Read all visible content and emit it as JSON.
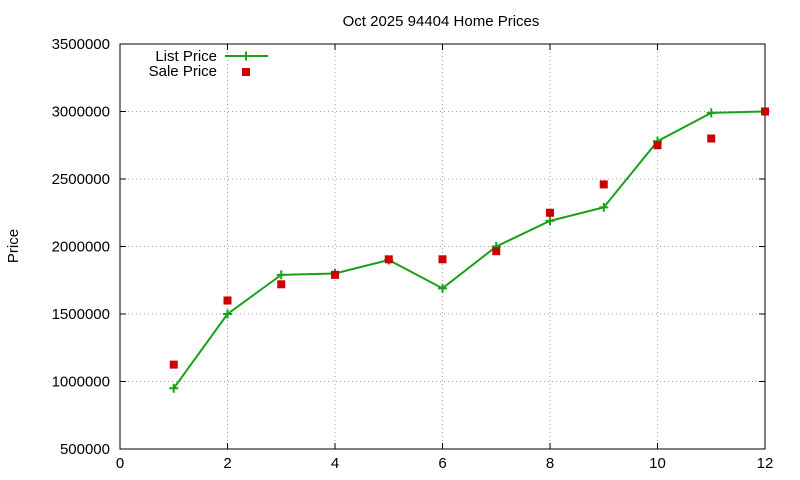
{
  "chart_data": {
    "type": "line",
    "title": "Oct 2025 94404 Home Prices",
    "xlabel": "",
    "ylabel": "Price",
    "xlim": [
      0,
      12
    ],
    "ylim": [
      500000,
      3500000
    ],
    "xticks": [
      0,
      2,
      4,
      6,
      8,
      10,
      12
    ],
    "yticks": [
      500000,
      1000000,
      1500000,
      2000000,
      2500000,
      3000000,
      3500000
    ],
    "grid": true,
    "legend_position": "top-left",
    "series": [
      {
        "name": "List Price",
        "style": "line-with-plus-markers",
        "color": "#1aa11a",
        "points": [
          {
            "x": 1,
            "y": 950000
          },
          {
            "x": 2,
            "y": 1500000
          },
          {
            "x": 3,
            "y": 1790000
          },
          {
            "x": 4,
            "y": 1800000
          },
          {
            "x": 5,
            "y": 1900000
          },
          {
            "x": 6,
            "y": 1690000
          },
          {
            "x": 7,
            "y": 2000000
          },
          {
            "x": 8,
            "y": 2190000
          },
          {
            "x": 9,
            "y": 2290000
          },
          {
            "x": 10,
            "y": 2780000
          },
          {
            "x": 11,
            "y": 2990000
          },
          {
            "x": 12,
            "y": 3000000
          }
        ]
      },
      {
        "name": "Sale Price",
        "style": "square-markers",
        "color": "#cc0000",
        "points": [
          {
            "x": 1,
            "y": 1125000
          },
          {
            "x": 2,
            "y": 1600000
          },
          {
            "x": 3,
            "y": 1720000
          },
          {
            "x": 4,
            "y": 1790000
          },
          {
            "x": 5,
            "y": 1905000
          },
          {
            "x": 6,
            "y": 1905000
          },
          {
            "x": 7,
            "y": 1965000
          },
          {
            "x": 8,
            "y": 2250000
          },
          {
            "x": 9,
            "y": 2460000
          },
          {
            "x": 10,
            "y": 2750000
          },
          {
            "x": 11,
            "y": 2800000
          },
          {
            "x": 12,
            "y": 3000000
          }
        ]
      }
    ]
  }
}
